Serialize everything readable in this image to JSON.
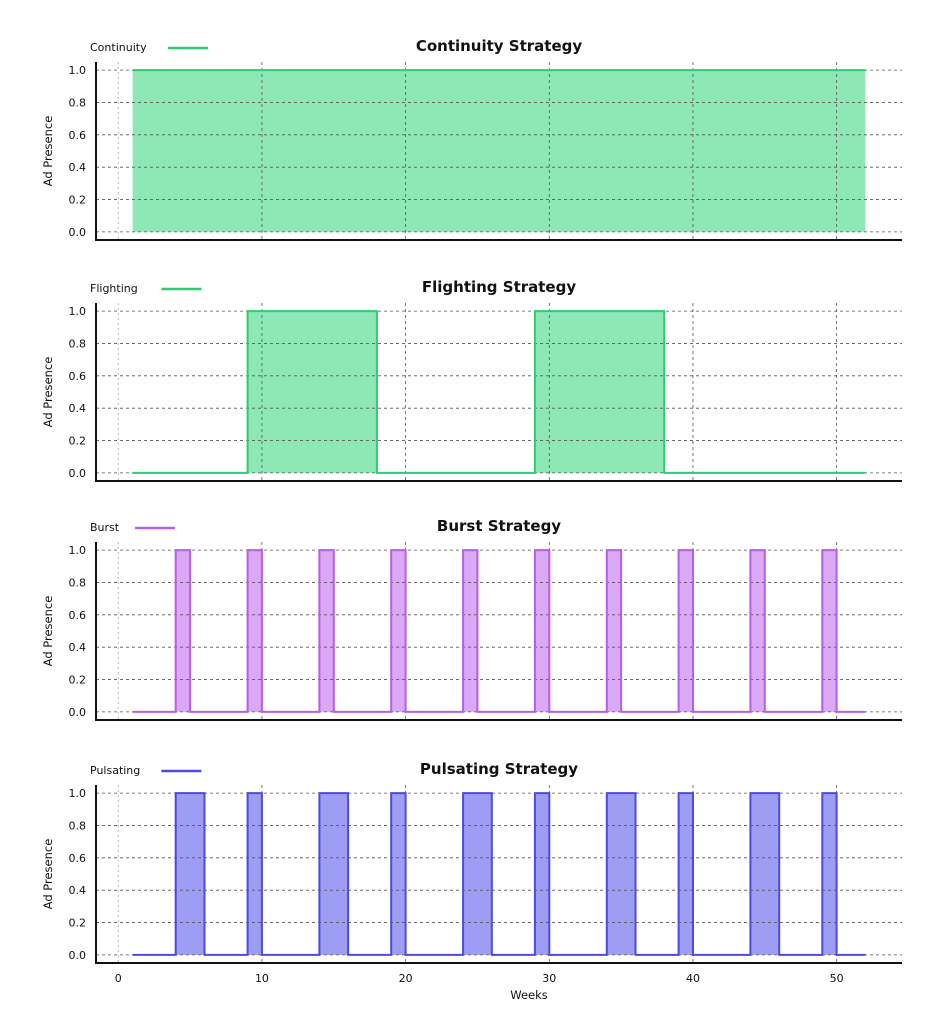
{
  "chart_data": [
    {
      "type": "area",
      "title": "Continuity Strategy",
      "xlabel": "",
      "ylabel": "Ad Presence",
      "xlim": [
        -1.55,
        54.55
      ],
      "ylim": [
        -0.05,
        1.05
      ],
      "yticks": [
        "0.0",
        "0.2",
        "0.4",
        "0.6",
        "0.8",
        "1.0"
      ],
      "xticks": [],
      "grid": true,
      "step": "post",
      "legend_position": "top-left",
      "series": [
        {
          "name": "Continuity",
          "line_color": "#2ecc71",
          "fill_color": "#8ee8b6",
          "values": [
            1,
            1,
            1,
            1,
            1,
            1,
            1,
            1,
            1,
            1,
            1,
            1,
            1,
            1,
            1,
            1,
            1,
            1,
            1,
            1,
            1,
            1,
            1,
            1,
            1,
            1,
            1,
            1,
            1,
            1,
            1,
            1,
            1,
            1,
            1,
            1,
            1,
            1,
            1,
            1,
            1,
            1,
            1,
            1,
            1,
            1,
            1,
            1,
            1,
            1,
            1,
            1
          ]
        }
      ]
    },
    {
      "type": "area",
      "title": "Flighting Strategy",
      "xlabel": "",
      "ylabel": "Ad Presence",
      "xlim": [
        -1.55,
        54.55
      ],
      "ylim": [
        -0.05,
        1.05
      ],
      "yticks": [
        "0.0",
        "0.2",
        "0.4",
        "0.6",
        "0.8",
        "1.0"
      ],
      "xticks": [],
      "grid": true,
      "step": "post",
      "legend_position": "top-left",
      "series": [
        {
          "name": "Flighting",
          "line_color": "#2ecc71",
          "fill_color": "#8ee8b6",
          "values": [
            0,
            0,
            0,
            0,
            0,
            0,
            0,
            0,
            1,
            1,
            1,
            1,
            1,
            1,
            1,
            1,
            1,
            0,
            0,
            0,
            0,
            0,
            0,
            0,
            0,
            0,
            0,
            0,
            1,
            1,
            1,
            1,
            1,
            1,
            1,
            1,
            1,
            0,
            0,
            0,
            0,
            0,
            0,
            0,
            0,
            0,
            0,
            0,
            0,
            0,
            0,
            0
          ]
        }
      ]
    },
    {
      "type": "area",
      "title": "Burst Strategy",
      "xlabel": "",
      "ylabel": "Ad Presence",
      "xlim": [
        -1.55,
        54.55
      ],
      "ylim": [
        -0.05,
        1.05
      ],
      "yticks": [
        "0.0",
        "0.2",
        "0.4",
        "0.6",
        "0.8",
        "1.0"
      ],
      "xticks": [],
      "grid": true,
      "step": "post",
      "legend_position": "top-left",
      "series": [
        {
          "name": "Burst",
          "line_color": "#b65ee8",
          "fill_color": "#dba8f5",
          "values": [
            0,
            0,
            0,
            1,
            0,
            0,
            0,
            0,
            1,
            0,
            0,
            0,
            0,
            1,
            0,
            0,
            0,
            0,
            1,
            0,
            0,
            0,
            0,
            1,
            0,
            0,
            0,
            0,
            1,
            0,
            0,
            0,
            0,
            1,
            0,
            0,
            0,
            0,
            1,
            0,
            0,
            0,
            0,
            1,
            0,
            0,
            0,
            0,
            1,
            0,
            0,
            0
          ]
        }
      ]
    },
    {
      "type": "area",
      "title": "Pulsating Strategy",
      "xlabel": "Weeks",
      "ylabel": "Ad Presence",
      "xlim": [
        -1.55,
        54.55
      ],
      "ylim": [
        -0.05,
        1.05
      ],
      "yticks": [
        "0.0",
        "0.2",
        "0.4",
        "0.6",
        "0.8",
        "1.0"
      ],
      "xticks": [
        "0",
        "10",
        "20",
        "30",
        "40",
        "50"
      ],
      "grid": true,
      "step": "post",
      "legend_position": "top-left",
      "series": [
        {
          "name": "Pulsating",
          "line_color": "#4b4be0",
          "fill_color": "#9d9ef3",
          "values": [
            0,
            0,
            0,
            1,
            1,
            0,
            0,
            0,
            1,
            0,
            0,
            0,
            0,
            1,
            1,
            0,
            0,
            0,
            1,
            0,
            0,
            0,
            0,
            1,
            1,
            0,
            0,
            0,
            1,
            0,
            0,
            0,
            0,
            1,
            1,
            0,
            0,
            0,
            1,
            0,
            0,
            0,
            0,
            1,
            1,
            0,
            0,
            0,
            1,
            0,
            0,
            0
          ]
        }
      ]
    }
  ],
  "x_weeks": [
    1,
    2,
    3,
    4,
    5,
    6,
    7,
    8,
    9,
    10,
    11,
    12,
    13,
    14,
    15,
    16,
    17,
    18,
    19,
    20,
    21,
    22,
    23,
    24,
    25,
    26,
    27,
    28,
    29,
    30,
    31,
    32,
    33,
    34,
    35,
    36,
    37,
    38,
    39,
    40,
    41,
    42,
    43,
    44,
    45,
    46,
    47,
    48,
    49,
    50,
    51,
    52
  ]
}
